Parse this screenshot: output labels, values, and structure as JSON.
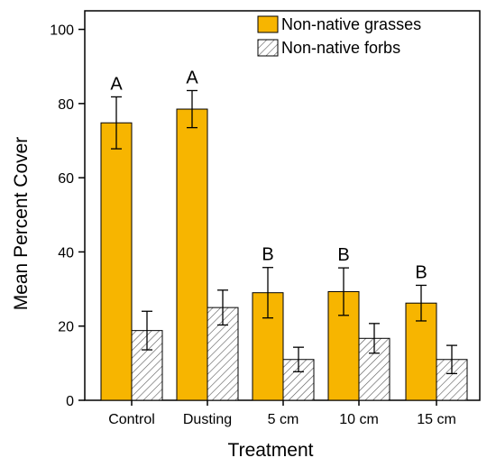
{
  "chart_data": {
    "type": "bar",
    "xlabel": "Treatment",
    "ylabel": "Mean Percent Cover",
    "ylim": [
      0,
      105
    ],
    "yticks": [
      0,
      20,
      40,
      60,
      80,
      100
    ],
    "categories": [
      "Control",
      "Dusting",
      "5 cm",
      "10 cm",
      "15 cm"
    ],
    "series": [
      {
        "name": "Non-native grasses",
        "color": "#F7B500",
        "pattern": "solid",
        "values": [
          74.8,
          78.5,
          29.0,
          29.3,
          26.2
        ],
        "errors": [
          7.0,
          5.0,
          6.8,
          6.4,
          4.8
        ]
      },
      {
        "name": "Non-native forbs",
        "color": "#ffffff",
        "pattern": "hatch",
        "values": [
          18.8,
          25.0,
          11.0,
          16.7,
          11.0
        ],
        "errors": [
          5.2,
          4.7,
          3.3,
          4.0,
          3.8
        ]
      }
    ],
    "annotations": [
      "A",
      "A",
      "B",
      "B",
      "B"
    ],
    "legend_position": "top-right",
    "grid": false
  }
}
